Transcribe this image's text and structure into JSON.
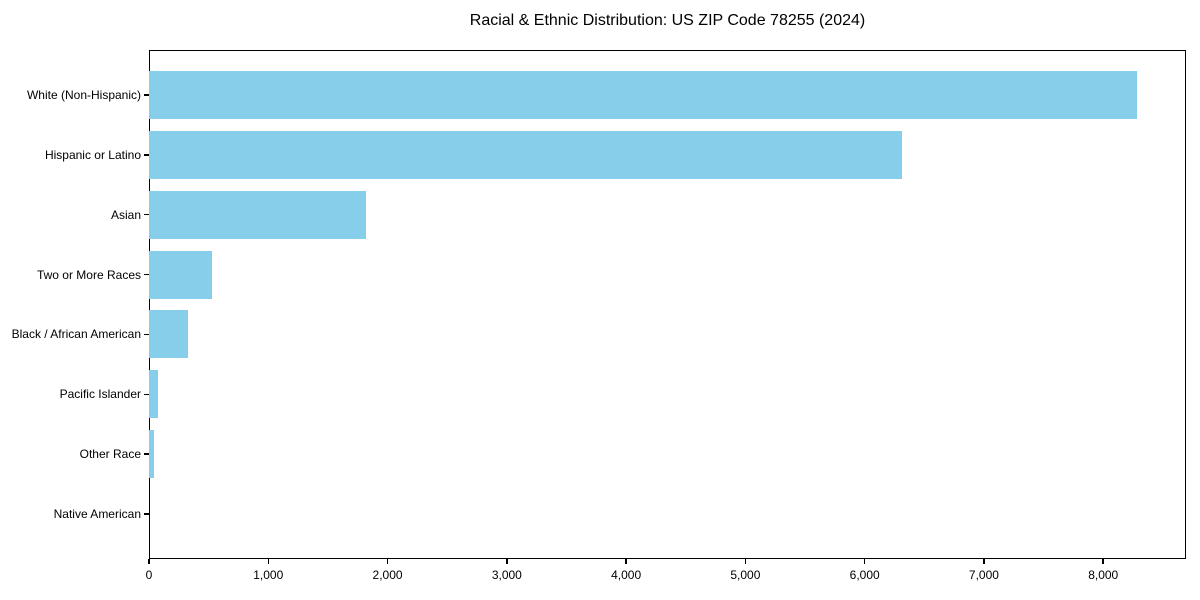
{
  "chart_data": {
    "type": "bar",
    "orientation": "horizontal",
    "title": "Racial & Ethnic Distribution: US ZIP Code 78255 (2024)",
    "categories": [
      "White (Non-Hispanic)",
      "Hispanic or Latino",
      "Asian",
      "Two or More Races",
      "Black / African American",
      "Pacific Islander",
      "Other Race",
      "Native American"
    ],
    "values": [
      8280,
      6310,
      1820,
      530,
      330,
      75,
      45,
      0
    ],
    "xlabel": "",
    "ylabel": "",
    "xlim": [
      0,
      8694
    ],
    "x_ticks": [
      0,
      1000,
      2000,
      3000,
      4000,
      5000,
      6000,
      7000,
      8000
    ],
    "x_tick_labels": [
      "0",
      "1,000",
      "2,000",
      "3,000",
      "4,000",
      "5,000",
      "6,000",
      "7,000",
      "8,000"
    ],
    "bar_color": "#87CEEB",
    "axis_color": "#000000",
    "grid": false,
    "legend": false
  }
}
